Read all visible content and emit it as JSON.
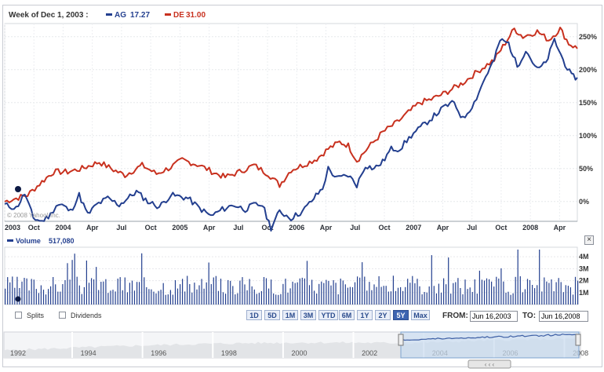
{
  "header": {
    "week_label": "Week of Dec 1, 2003 :",
    "series": [
      {
        "name": "AG",
        "value": "17.27",
        "color": "#233f8f"
      },
      {
        "name": "DE",
        "value": "31.00",
        "color": "#c8311f"
      }
    ]
  },
  "watermark": "© 2008 Yahoo! Inc.",
  "chart_data": {
    "type": "line",
    "title": "Week of Dec 1, 2003 : AG 17.27 DE 31.00",
    "y_axis_labels": [
      "250%",
      "200%",
      "150%",
      "100%",
      "50%",
      "0%"
    ],
    "y_axis_values": [
      250,
      200,
      150,
      100,
      50,
      0
    ],
    "x_tick_labels": [
      "2003",
      "Oct",
      "2004",
      "Apr",
      "Jul",
      "Oct",
      "2005",
      "Apr",
      "Jul",
      "Oct",
      "2006",
      "Apr",
      "Jul",
      "Oct",
      "2007",
      "Apr",
      "Jul",
      "Oct",
      "2008",
      "Apr"
    ],
    "x_tick_t": [
      0,
      0.051,
      0.102,
      0.153,
      0.204,
      0.255,
      0.306,
      0.357,
      0.408,
      0.459,
      0.51,
      0.561,
      0.612,
      0.663,
      0.714,
      0.765,
      0.816,
      0.867,
      0.918,
      0.969
    ],
    "x_range": [
      0,
      1
    ],
    "ylim": [
      -30,
      270
    ],
    "series": [
      {
        "name": "DE",
        "color": "#c8311f",
        "points": [
          [
            0,
            0
          ],
          [
            0.04,
            10
          ],
          [
            0.065,
            30
          ],
          [
            0.085,
            45
          ],
          [
            0.11,
            45
          ],
          [
            0.135,
            50
          ],
          [
            0.165,
            60
          ],
          [
            0.19,
            48
          ],
          [
            0.21,
            40
          ],
          [
            0.24,
            55
          ],
          [
            0.265,
            42
          ],
          [
            0.29,
            52
          ],
          [
            0.31,
            63
          ],
          [
            0.34,
            55
          ],
          [
            0.37,
            42
          ],
          [
            0.385,
            37
          ],
          [
            0.41,
            45
          ],
          [
            0.435,
            55
          ],
          [
            0.46,
            42
          ],
          [
            0.48,
            25
          ],
          [
            0.5,
            48
          ],
          [
            0.52,
            55
          ],
          [
            0.545,
            65
          ],
          [
            0.565,
            80
          ],
          [
            0.585,
            90
          ],
          [
            0.6,
            85
          ],
          [
            0.615,
            62
          ],
          [
            0.635,
            82
          ],
          [
            0.66,
            105
          ],
          [
            0.685,
            120
          ],
          [
            0.705,
            135
          ],
          [
            0.725,
            150
          ],
          [
            0.745,
            155
          ],
          [
            0.77,
            165
          ],
          [
            0.8,
            180
          ],
          [
            0.83,
            200
          ],
          [
            0.855,
            215
          ],
          [
            0.87,
            235
          ],
          [
            0.89,
            262
          ],
          [
            0.905,
            250
          ],
          [
            0.93,
            258
          ],
          [
            0.95,
            245
          ],
          [
            0.97,
            262
          ],
          [
            0.985,
            240
          ],
          [
            1,
            232
          ]
        ]
      },
      {
        "name": "AG",
        "color": "#233f8f",
        "points": [
          [
            0,
            -5
          ],
          [
            0.02,
            -10
          ],
          [
            0.035,
            12
          ],
          [
            0.05,
            -25
          ],
          [
            0.065,
            -30
          ],
          [
            0.08,
            -20
          ],
          [
            0.09,
            -5
          ],
          [
            0.1,
            -5
          ],
          [
            0.115,
            -15
          ],
          [
            0.13,
            10
          ],
          [
            0.145,
            -20
          ],
          [
            0.16,
            -5
          ],
          [
            0.18,
            5
          ],
          [
            0.2,
            -5
          ],
          [
            0.23,
            15
          ],
          [
            0.25,
            0
          ],
          [
            0.27,
            -8
          ],
          [
            0.29,
            10
          ],
          [
            0.32,
            5
          ],
          [
            0.34,
            -10
          ],
          [
            0.36,
            -22
          ],
          [
            0.38,
            -12
          ],
          [
            0.4,
            -5
          ],
          [
            0.42,
            -12
          ],
          [
            0.435,
            -5
          ],
          [
            0.45,
            -5
          ],
          [
            0.465,
            -40
          ],
          [
            0.48,
            -15
          ],
          [
            0.5,
            -25
          ],
          [
            0.52,
            -15
          ],
          [
            0.54,
            5
          ],
          [
            0.555,
            20
          ],
          [
            0.565,
            50
          ],
          [
            0.58,
            35
          ],
          [
            0.6,
            40
          ],
          [
            0.615,
            25
          ],
          [
            0.63,
            55
          ],
          [
            0.645,
            50
          ],
          [
            0.66,
            60
          ],
          [
            0.675,
            80
          ],
          [
            0.69,
            80
          ],
          [
            0.71,
            100
          ],
          [
            0.73,
            115
          ],
          [
            0.75,
            130
          ],
          [
            0.77,
            145
          ],
          [
            0.785,
            150
          ],
          [
            0.8,
            125
          ],
          [
            0.82,
            150
          ],
          [
            0.84,
            190
          ],
          [
            0.855,
            215
          ],
          [
            0.865,
            245
          ],
          [
            0.88,
            240
          ],
          [
            0.895,
            205
          ],
          [
            0.91,
            230
          ],
          [
            0.93,
            200
          ],
          [
            0.945,
            210
          ],
          [
            0.96,
            245
          ],
          [
            0.975,
            215
          ],
          [
            0.99,
            190
          ],
          [
            1,
            188
          ]
        ]
      }
    ],
    "volume": {
      "label": "Volume",
      "value": "517,080",
      "y_axis_labels": [
        "4M",
        "3M",
        "2M",
        "1M"
      ],
      "y_axis_values": [
        4,
        3,
        2,
        1
      ],
      "ylim": [
        0,
        4.8
      ],
      "color": "#233f8f"
    }
  },
  "controls": {
    "splits_label": "Splits",
    "dividends_label": "Dividends",
    "ranges": [
      "1D",
      "5D",
      "1M",
      "3M",
      "YTD",
      "6M",
      "1Y",
      "2Y",
      "5Y",
      "Max"
    ],
    "selected_range": "5Y",
    "from_label": "FROM:",
    "from_value": "Jun 16,2003",
    "to_label": "TO:",
    "to_value": "Jun 16,2008"
  },
  "navigator": {
    "years": [
      "1992",
      "1994",
      "1996",
      "1998",
      "2000",
      "2002",
      "2004",
      "2006",
      "2008"
    ],
    "scroll_label": "‹ ‹ ‹"
  },
  "close_icon_glyph": "×"
}
